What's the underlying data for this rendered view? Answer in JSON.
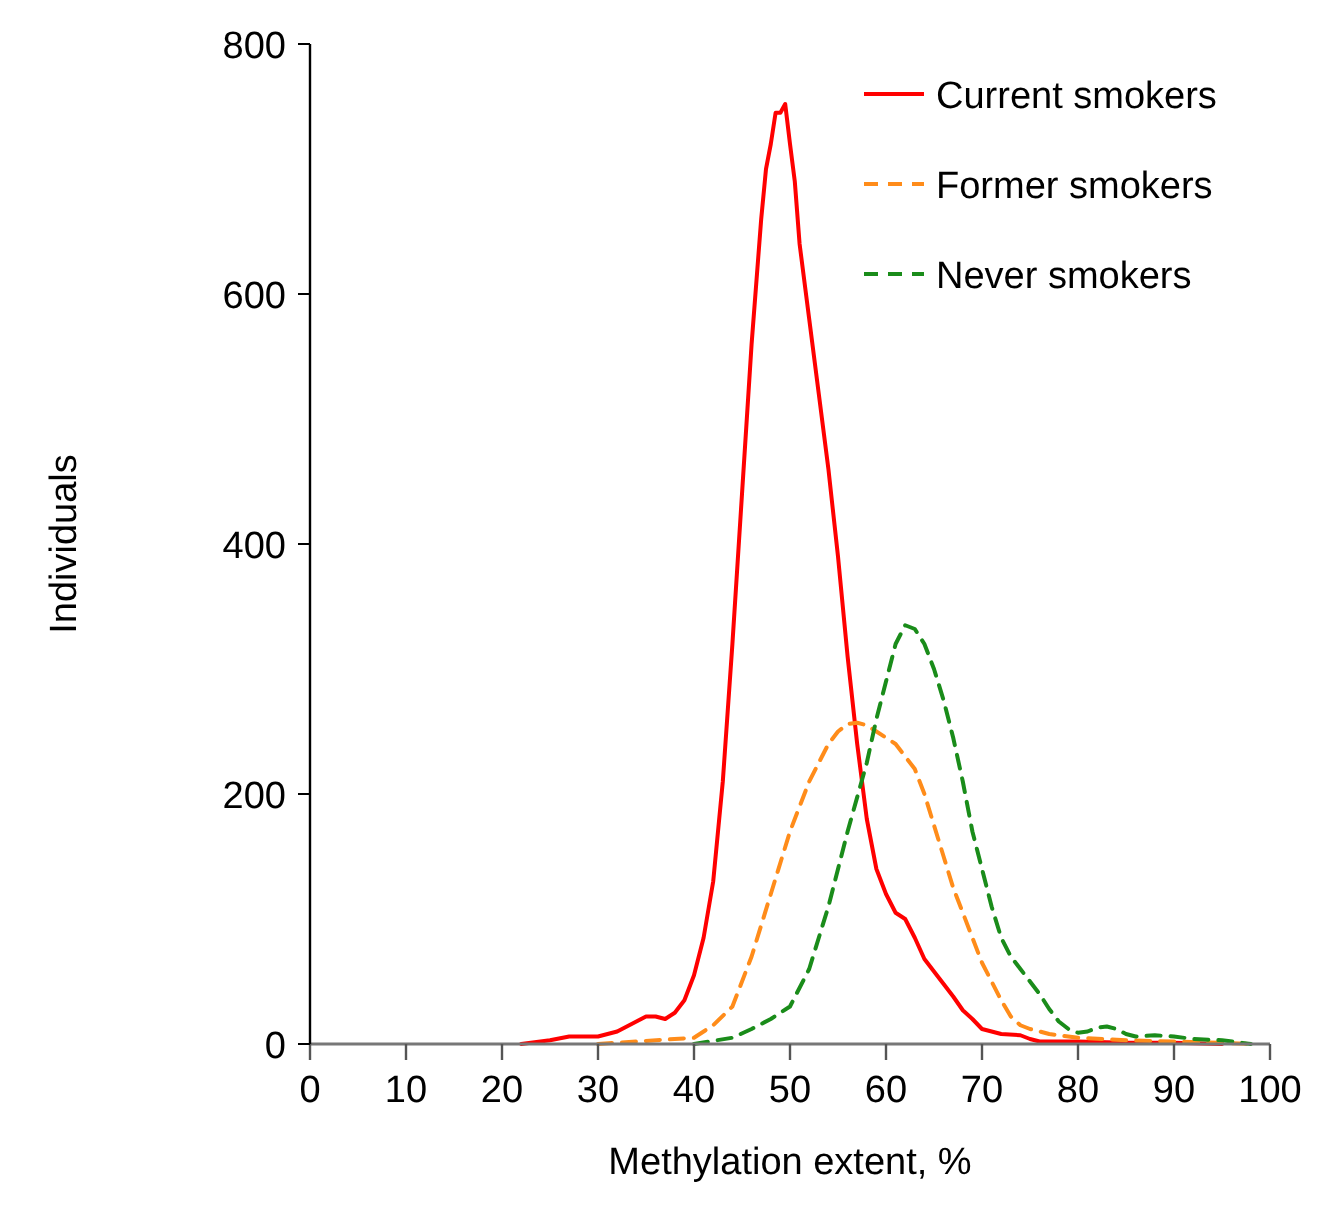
{
  "chart_data": {
    "type": "line",
    "xlabel": "Methylation extent, %",
    "ylabel": "Individuals",
    "xlim": [
      0,
      100
    ],
    "xticks": [
      0,
      10,
      20,
      30,
      40,
      50,
      60,
      70,
      80,
      90,
      100
    ],
    "ylim": [
      0,
      800
    ],
    "yticks": [
      0,
      200,
      400,
      600,
      800
    ],
    "grid": false,
    "legend": "top right",
    "marker": "none",
    "series": [
      {
        "name": "Current smokers",
        "color": "#ff0000",
        "line_style": "solid",
        "x": [
          22,
          25,
          27,
          30,
          32,
          34,
          35,
          36,
          37,
          38,
          39,
          40,
          41,
          42,
          43,
          44,
          45,
          46,
          47,
          47.5,
          48,
          48.5,
          49,
          49.5,
          50,
          50.5,
          51,
          52,
          53,
          54,
          55,
          56,
          57,
          58,
          59,
          60,
          61,
          62,
          63,
          64,
          65,
          66,
          67,
          68,
          69,
          70,
          72,
          74,
          75,
          76,
          80,
          85,
          90,
          95
        ],
        "values": [
          0,
          3,
          6,
          6,
          10,
          18,
          22,
          22,
          20,
          25,
          35,
          55,
          85,
          130,
          210,
          320,
          440,
          560,
          660,
          700,
          720,
          745,
          745,
          752,
          720,
          690,
          640,
          580,
          520,
          460,
          390,
          310,
          240,
          180,
          140,
          120,
          105,
          100,
          85,
          68,
          58,
          48,
          38,
          27,
          20,
          12,
          8,
          7,
          4,
          2,
          2,
          1,
          1,
          0
        ]
      },
      {
        "name": "Former smokers",
        "color": "#ff8c1a",
        "line_style": "dashed",
        "x": [
          30,
          40,
          42,
          44,
          46,
          48,
          50,
          52,
          54,
          55,
          56,
          57,
          58,
          59,
          60,
          61,
          62,
          63,
          64,
          65,
          66,
          67,
          68,
          69,
          70,
          71,
          72,
          73,
          74,
          75,
          77,
          80,
          85,
          90,
          95,
          98
        ],
        "values": [
          0,
          5,
          15,
          30,
          70,
          120,
          170,
          210,
          240,
          250,
          256,
          257,
          255,
          250,
          245,
          240,
          230,
          220,
          200,
          175,
          150,
          125,
          105,
          85,
          65,
          50,
          35,
          22,
          15,
          12,
          8,
          5,
          3,
          2,
          1,
          0
        ]
      },
      {
        "name": "Never smokers",
        "color": "#1a8c1a",
        "line_style": "dashed",
        "x": [
          40,
          44,
          46,
          48,
          50,
          52,
          54,
          56,
          58,
          59,
          60,
          61,
          62,
          63,
          64,
          65,
          66,
          67,
          68,
          69,
          70,
          71,
          72,
          73,
          74,
          75,
          76,
          77,
          78,
          79,
          80,
          81,
          82,
          83,
          84,
          85,
          86,
          88,
          90,
          92,
          95,
          98
        ],
        "values": [
          0,
          5,
          12,
          20,
          30,
          60,
          110,
          170,
          225,
          260,
          290,
          320,
          335,
          332,
          320,
          300,
          275,
          245,
          210,
          170,
          140,
          110,
          85,
          70,
          60,
          50,
          40,
          28,
          18,
          12,
          9,
          10,
          13,
          14,
          12,
          8,
          6,
          7,
          6,
          4,
          3,
          0
        ]
      }
    ]
  }
}
